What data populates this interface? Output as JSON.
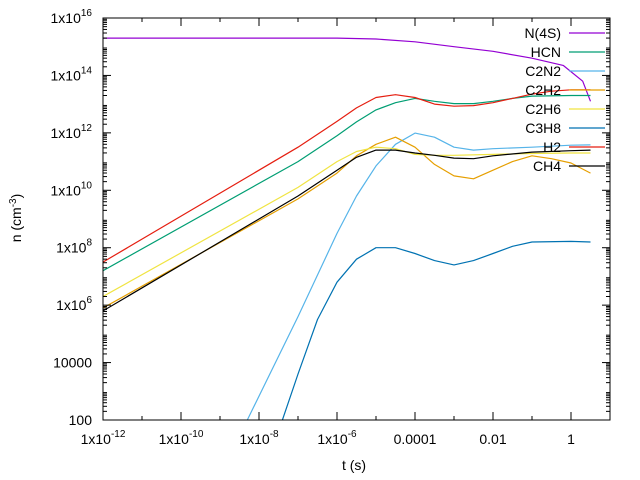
{
  "chart_data": {
    "type": "line",
    "title": "",
    "xlabel": "t (s)",
    "ylabel": "n (cm^-3)",
    "xscale": "log",
    "yscale": "log",
    "xlim": [
      1e-12,
      10
    ],
    "ylim": [
      100,
      1e+16
    ],
    "x_ticks": [
      {
        "v": 1e-12,
        "label": "1x10",
        "exp": "-12"
      },
      {
        "v": 1e-10,
        "label": "1x10",
        "exp": "-10"
      },
      {
        "v": 1e-08,
        "label": "1x10",
        "exp": "-8"
      },
      {
        "v": 1e-06,
        "label": "1x10",
        "exp": "-6"
      },
      {
        "v": 0.0001,
        "label": "0.0001",
        "exp": ""
      },
      {
        "v": 0.01,
        "label": "0.01",
        "exp": ""
      },
      {
        "v": 1,
        "label": "1",
        "exp": ""
      }
    ],
    "y_ticks": [
      {
        "v": 100,
        "label": "100",
        "exp": ""
      },
      {
        "v": 10000.0,
        "label": "10000",
        "exp": ""
      },
      {
        "v": 1000000.0,
        "label": "1x10",
        "exp": "6"
      },
      {
        "v": 100000000.0,
        "label": "1x10",
        "exp": "8"
      },
      {
        "v": 10000000000.0,
        "label": "1x10",
        "exp": "10"
      },
      {
        "v": 1000000000000.0,
        "label": "1x10",
        "exp": "12"
      },
      {
        "v": 100000000000000.0,
        "label": "1x10",
        "exp": "14"
      },
      {
        "v": 1e+16,
        "label": "1x10",
        "exp": "16"
      }
    ],
    "legend_position": "top-right",
    "series": [
      {
        "name": "N(4S)",
        "color": "#9400d3",
        "points": [
          [
            -12,
            15.3
          ],
          [
            -6,
            15.3
          ],
          [
            -5,
            15.27
          ],
          [
            -4,
            15.17
          ],
          [
            -3,
            15.0
          ],
          [
            -2,
            14.84
          ],
          [
            -1,
            14.6
          ],
          [
            -0.2,
            14.35
          ],
          [
            0.3,
            13.8
          ],
          [
            0.5,
            13.1
          ]
        ]
      },
      {
        "name": "HCN",
        "color": "#009e73",
        "points": [
          [
            -12,
            7.2
          ],
          [
            -7,
            11.0
          ],
          [
            -6,
            11.9
          ],
          [
            -5.5,
            12.38
          ],
          [
            -5,
            12.8
          ],
          [
            -4.5,
            13.05
          ],
          [
            -4,
            13.2
          ],
          [
            -3.5,
            13.1
          ],
          [
            -3,
            13.02
          ],
          [
            -2.5,
            13.02
          ],
          [
            -2,
            13.1
          ],
          [
            -1.5,
            13.2
          ],
          [
            -1,
            13.28
          ],
          [
            0,
            13.3
          ],
          [
            0.5,
            13.3
          ]
        ]
      },
      {
        "name": "C2N2",
        "color": "#56b4e9",
        "points": [
          [
            -8.3,
            2.0
          ],
          [
            -7,
            5.6
          ],
          [
            -6,
            8.5
          ],
          [
            -5.5,
            9.8
          ],
          [
            -5,
            10.85
          ],
          [
            -4.5,
            11.6
          ],
          [
            -4,
            11.99
          ],
          [
            -3.5,
            11.85
          ],
          [
            -3,
            11.5
          ],
          [
            -2.5,
            11.4
          ],
          [
            -2,
            11.45
          ],
          [
            -1,
            11.5
          ],
          [
            0,
            11.57
          ],
          [
            0.5,
            11.58
          ]
        ]
      },
      {
        "name": "C2H2",
        "color": "#e69f00",
        "points": [
          [
            -12,
            5.9
          ],
          [
            -7,
            9.7
          ],
          [
            -6,
            10.6
          ],
          [
            -5.5,
            11.2
          ],
          [
            -5,
            11.6
          ],
          [
            -4.5,
            11.85
          ],
          [
            -4,
            11.5
          ],
          [
            -3.5,
            10.9
          ],
          [
            -3,
            10.5
          ],
          [
            -2.5,
            10.4
          ],
          [
            -2,
            10.7
          ],
          [
            -1.5,
            11.0
          ],
          [
            -1,
            11.2
          ],
          [
            -0.5,
            11.1
          ],
          [
            0,
            10.95
          ],
          [
            0.5,
            10.6
          ]
        ]
      },
      {
        "name": "C2H6",
        "color": "#f0e442",
        "points": [
          [
            -12,
            6.3
          ],
          [
            -7,
            10.1
          ],
          [
            -6,
            11.0
          ],
          [
            -5.5,
            11.35
          ],
          [
            -5,
            11.5
          ],
          [
            -4.5,
            11.45
          ],
          [
            -4,
            11.25
          ],
          [
            -3.5,
            11.22
          ],
          [
            -3,
            11.22
          ],
          [
            -2,
            11.25
          ],
          [
            -1,
            11.28
          ],
          [
            0,
            11.3
          ],
          [
            0.5,
            11.3
          ]
        ]
      },
      {
        "name": "C3H8",
        "color": "#0072b2",
        "points": [
          [
            -7.4,
            2.0
          ],
          [
            -7,
            3.6
          ],
          [
            -6.5,
            5.5
          ],
          [
            -6,
            6.8
          ],
          [
            -5.5,
            7.6
          ],
          [
            -5,
            8.0
          ],
          [
            -4.5,
            8.0
          ],
          [
            -4,
            7.8
          ],
          [
            -3.5,
            7.55
          ],
          [
            -3,
            7.4
          ],
          [
            -2.5,
            7.55
          ],
          [
            -2,
            7.8
          ],
          [
            -1.5,
            8.05
          ],
          [
            -1,
            8.2
          ],
          [
            0,
            8.22
          ],
          [
            0.5,
            8.2
          ]
        ]
      },
      {
        "name": "H2",
        "color": "#e51e10",
        "points": [
          [
            -12,
            7.5
          ],
          [
            -7,
            11.5
          ],
          [
            -6,
            12.4
          ],
          [
            -5.5,
            12.87
          ],
          [
            -5,
            13.23
          ],
          [
            -4.5,
            13.33
          ],
          [
            -4,
            13.23
          ],
          [
            -3.5,
            13.0
          ],
          [
            -3,
            12.93
          ],
          [
            -2.5,
            12.95
          ],
          [
            -2,
            13.05
          ],
          [
            -1.5,
            13.2
          ],
          [
            -1,
            13.35
          ],
          [
            -0.5,
            13.45
          ],
          [
            0,
            13.5
          ],
          [
            0.5,
            13.5
          ]
        ]
      },
      {
        "name": "CH4",
        "color": "#000000",
        "points": [
          [
            -12,
            5.8
          ],
          [
            -7,
            9.8
          ],
          [
            -6,
            10.7
          ],
          [
            -5.5,
            11.15
          ],
          [
            -5,
            11.4
          ],
          [
            -4.5,
            11.4
          ],
          [
            -4,
            11.3
          ],
          [
            -3.5,
            11.22
          ],
          [
            -3,
            11.12
          ],
          [
            -2.5,
            11.1
          ],
          [
            -2,
            11.2
          ],
          [
            -1,
            11.33
          ],
          [
            0,
            11.38
          ],
          [
            0.5,
            11.4
          ]
        ]
      }
    ]
  }
}
